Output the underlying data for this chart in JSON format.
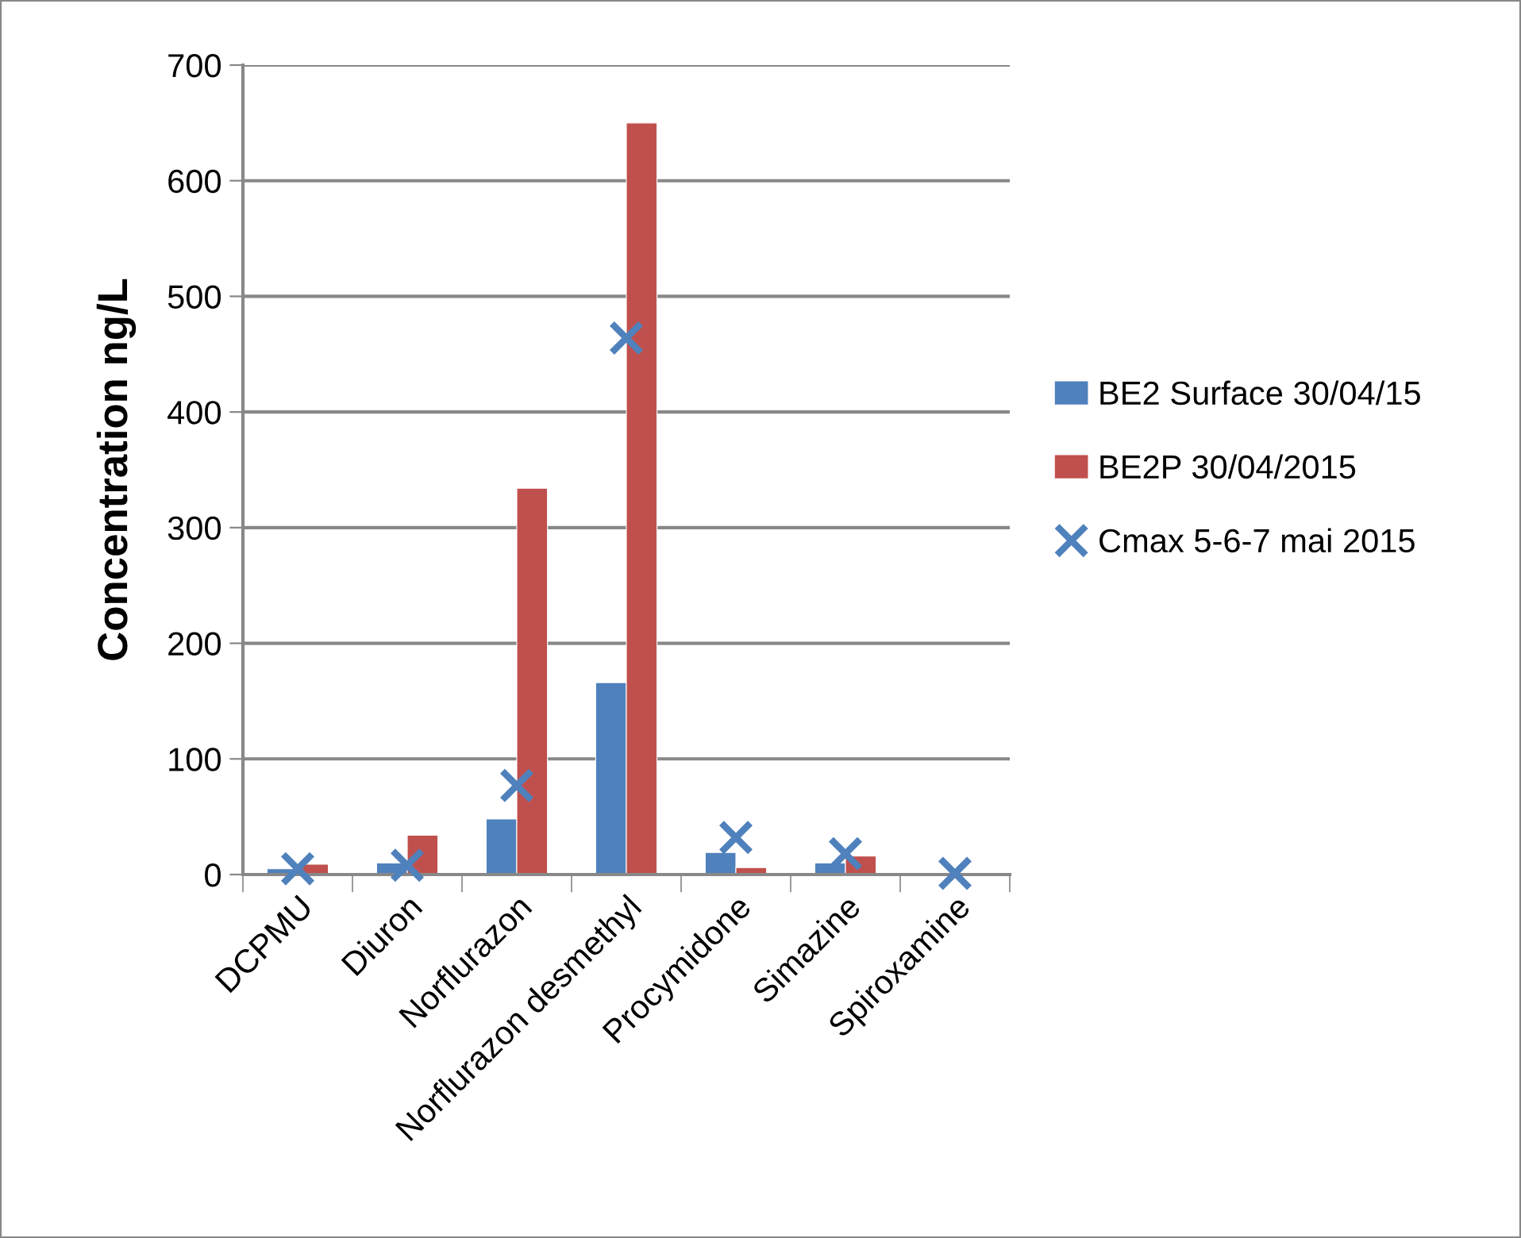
{
  "chart_data": {
    "type": "bar",
    "ylabel": "Concentration ng/L",
    "categories": [
      "DCPMU",
      "Diuron",
      "Norflurazon",
      "Norflurazon desmethyl",
      "Procymidone",
      "Simazine",
      "Spiroxamine"
    ],
    "series": [
      {
        "name": "BE2 Surface 30/04/15",
        "color": "#4f81bd",
        "values": [
          5,
          10,
          48,
          166,
          19,
          10,
          null
        ]
      },
      {
        "name": "BE2P 30/04/2015",
        "color": "#c0504d",
        "values": [
          9,
          34,
          334,
          650,
          6,
          16,
          null
        ]
      },
      {
        "name": "Cmax 5-6-7 mai 2015",
        "color": "#4f81bd",
        "type": "scatter",
        "marker": "cross",
        "values": [
          5,
          8,
          77,
          464,
          32,
          18,
          1
        ]
      }
    ],
    "ylim": [
      0,
      700
    ],
    "yticks": [
      0,
      100,
      200,
      300,
      400,
      500,
      600,
      700
    ],
    "grid": "y",
    "legend": "right"
  }
}
